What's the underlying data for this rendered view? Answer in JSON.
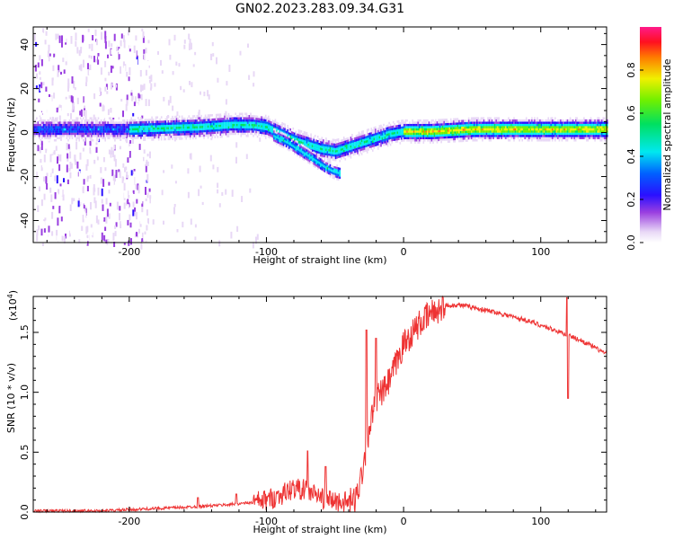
{
  "title": "GN02.2023.283.09.34.G31",
  "chart_data": [
    {
      "type": "heatmap",
      "xlabel": "Height of straight line (km)",
      "ylabel": "Frequency (Hz)",
      "xlim": [
        -270,
        148
      ],
      "ylim": [
        -50,
        48
      ],
      "xticks": [
        -200,
        -100,
        0,
        100
      ],
      "yticks": [
        -40,
        -20,
        0,
        20,
        40
      ],
      "colorbar": {
        "label": "Normalized spectral amplitude",
        "range": [
          0,
          1
        ],
        "ticks": [
          0.0,
          0.2,
          0.4,
          0.6,
          0.8
        ]
      },
      "ridge": {
        "x": [
          -270,
          -200,
          -150,
          -125,
          -110,
          -100,
          -90,
          -80,
          -70,
          -60,
          -50,
          -40,
          -30,
          -20,
          -10,
          0,
          20,
          50,
          80,
          100,
          120,
          148
        ],
        "y": [
          2,
          2,
          3,
          4,
          4,
          3,
          0,
          -3,
          -5,
          -7,
          -8,
          -6,
          -4,
          -2,
          0,
          1,
          1,
          2,
          2,
          2,
          2,
          2
        ]
      },
      "branch": {
        "x": [
          -95,
          -85,
          -75,
          -65,
          -58,
          -52,
          -47
        ],
        "y": [
          -1,
          -4,
          -8,
          -12,
          -15,
          -17,
          -18
        ]
      },
      "noise_region_x": [
        -270,
        -185
      ],
      "colors": [
        "#ffffff",
        "#ece0f8",
        "#b87be0",
        "#7a1fd8",
        "#1010ff",
        "#00d8ff",
        "#00f000",
        "#ffff00",
        "#ff7f00",
        "#ff0000",
        "#ff00a0"
      ]
    },
    {
      "type": "line",
      "xlabel": "Height of straight line (km)",
      "ylabel": "SNR (10 * v/v)",
      "yscale_label": "(x10",
      "yscale_exp": "4",
      "xlim": [
        -270,
        148
      ],
      "ylim": [
        0,
        1.8
      ],
      "xticks": [
        -200,
        -100,
        0,
        100
      ],
      "yticks": [
        "0.0",
        "0.5",
        "1.0",
        "1.5"
      ],
      "color": "#ee3333",
      "envelope": {
        "x": [
          -270,
          -220,
          -200,
          -160,
          -130,
          -110,
          -100,
          -90,
          -80,
          -70,
          -60,
          -50,
          -40,
          -35,
          -30,
          -25,
          -20,
          -15,
          -10,
          -5,
          0,
          10,
          20,
          30,
          40,
          50,
          70,
          90,
          110,
          130,
          148
        ],
        "y": [
          0.01,
          0.01,
          0.02,
          0.04,
          0.06,
          0.08,
          0.1,
          0.14,
          0.2,
          0.18,
          0.12,
          0.09,
          0.08,
          0.1,
          0.35,
          0.7,
          0.95,
          1.0,
          1.1,
          1.25,
          1.4,
          1.55,
          1.66,
          1.72,
          1.73,
          1.71,
          1.66,
          1.6,
          1.52,
          1.43,
          1.32
        ]
      },
      "spikes": [
        {
          "x": -150,
          "y": 0.12
        },
        {
          "x": -122,
          "y": 0.15
        },
        {
          "x": -70,
          "y": 0.51
        },
        {
          "x": -57,
          "y": 0.38
        },
        {
          "x": -27,
          "y": 1.52
        },
        {
          "x": -20,
          "y": 1.45
        },
        {
          "x": 119,
          "y": 1.79
        },
        {
          "x": 120,
          "y": 0.95
        }
      ]
    }
  ]
}
